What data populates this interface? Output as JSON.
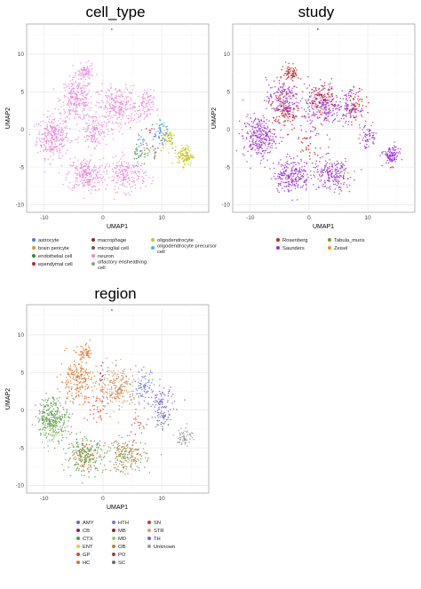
{
  "chart_data": [
    {
      "type": "scatter",
      "title": "cell_type",
      "xlabel": "UMAP1",
      "ylabel": "UMAP2",
      "xticks": [
        -10,
        0,
        10
      ],
      "yticks": [
        10,
        5,
        0,
        -5,
        -10
      ],
      "xlim": [
        -13,
        18
      ],
      "ylim": [
        -11,
        14
      ],
      "grid": true,
      "legend_position": "bottom",
      "legend_columns": 3,
      "series": [
        {
          "name": "astrocyte",
          "color": "#4a7fd0"
        },
        {
          "name": "brain pericyte",
          "color": "#e8922e"
        },
        {
          "name": "endothelial cell",
          "color": "#2e8b3a"
        },
        {
          "name": "ependymal cell",
          "color": "#c8202f"
        },
        {
          "name": "macrophage",
          "color": "#8a2a2a"
        },
        {
          "name": "microglial cell",
          "color": "#7a5a4a"
        },
        {
          "name": "neuron",
          "color": "#e88ad8"
        },
        {
          "name": "olfactory ensheathing cell",
          "color": "#999999"
        },
        {
          "name": "oligodendrocyte",
          "color": "#c8c81e"
        },
        {
          "name": "oligodendrocyte precursor cell",
          "color": "#4ab6d8"
        }
      ],
      "clusters": [
        {
          "series": 6,
          "x": -8.5,
          "y": -1,
          "sx": 2.5,
          "sy": 2.5,
          "n": 300
        },
        {
          "series": 6,
          "x": -4.5,
          "y": 4,
          "sx": 2.5,
          "sy": 2.5,
          "n": 260
        },
        {
          "series": 6,
          "x": -3,
          "y": -6,
          "sx": 2.8,
          "sy": 2,
          "n": 240
        },
        {
          "series": 6,
          "x": 2.5,
          "y": 3,
          "sx": 3,
          "sy": 2.5,
          "n": 260
        },
        {
          "series": 6,
          "x": 4,
          "y": -6,
          "sx": 3,
          "sy": 2,
          "n": 200
        },
        {
          "series": 6,
          "x": -3,
          "y": 7.5,
          "sx": 1.2,
          "sy": 1,
          "n": 80
        },
        {
          "series": 6,
          "x": -1.5,
          "y": 0,
          "sx": 2,
          "sy": 2,
          "n": 140
        },
        {
          "series": 6,
          "x": 7,
          "y": 3,
          "sx": 1.5,
          "sy": 2,
          "n": 100
        },
        {
          "series": 8,
          "x": 14,
          "y": -3.5,
          "sx": 1.2,
          "sy": 1.2,
          "n": 120
        },
        {
          "series": 8,
          "x": 11,
          "y": -1,
          "sx": 1.2,
          "sy": 1.5,
          "n": 60
        },
        {
          "series": 0,
          "x": 10,
          "y": -1,
          "sx": 1.5,
          "sy": 1.5,
          "n": 40
        },
        {
          "series": 0,
          "x": 6.5,
          "y": -1.5,
          "sx": 1,
          "sy": 1.5,
          "n": 20
        },
        {
          "series": 9,
          "x": 10,
          "y": 0.5,
          "sx": 1,
          "sy": 1,
          "n": 20
        },
        {
          "series": 2,
          "x": 6.5,
          "y": -3,
          "sx": 1.5,
          "sy": 1.5,
          "n": 30
        },
        {
          "series": 1,
          "x": 7.5,
          "y": -2.5,
          "sx": 0.5,
          "sy": 0.5,
          "n": 6
        },
        {
          "series": 3,
          "x": 8,
          "y": 0,
          "sx": 0.5,
          "sy": 0.5,
          "n": 6
        },
        {
          "series": 5,
          "x": 9,
          "y": -3,
          "sx": 0.6,
          "sy": 0.6,
          "n": 8
        }
      ]
    },
    {
      "type": "scatter",
      "title": "study",
      "xlabel": "UMAP1",
      "ylabel": "UMAP2",
      "xticks": [
        -10,
        0,
        10
      ],
      "yticks": [
        10,
        5,
        0,
        -5,
        -10
      ],
      "xlim": [
        -13,
        18
      ],
      "ylim": [
        -11,
        14
      ],
      "grid": true,
      "legend_position": "bottom",
      "legend_columns": 2,
      "series": [
        {
          "name": "Rosenberg",
          "color": "#cc1f1f"
        },
        {
          "name": "Saunders",
          "color": "#9a2fcf"
        },
        {
          "name": "Tabula_muris",
          "color": "#6aa02e"
        },
        {
          "name": "Zeisel",
          "color": "#e69a1a"
        }
      ],
      "clusters": [
        {
          "series": 1,
          "x": -8.5,
          "y": -1,
          "sx": 2.5,
          "sy": 2.5,
          "n": 280
        },
        {
          "series": 1,
          "x": -4.5,
          "y": 4,
          "sx": 2.5,
          "sy": 2.5,
          "n": 200
        },
        {
          "series": 1,
          "x": -3,
          "y": -6,
          "sx": 2.8,
          "sy": 2,
          "n": 240
        },
        {
          "series": 1,
          "x": 2.5,
          "y": 3,
          "sx": 3,
          "sy": 2.5,
          "n": 220
        },
        {
          "series": 1,
          "x": 4,
          "y": -6,
          "sx": 3,
          "sy": 2,
          "n": 200
        },
        {
          "series": 1,
          "x": 7,
          "y": 3,
          "sx": 1.5,
          "sy": 2,
          "n": 90
        },
        {
          "series": 1,
          "x": 14,
          "y": -3.5,
          "sx": 1.2,
          "sy": 1.2,
          "n": 110
        },
        {
          "series": 1,
          "x": 10,
          "y": -1,
          "sx": 1.5,
          "sy": 1.5,
          "n": 60
        },
        {
          "series": 0,
          "x": -3,
          "y": 7.5,
          "sx": 1.2,
          "sy": 1,
          "n": 70
        },
        {
          "series": 0,
          "x": -4,
          "y": 2,
          "sx": 2,
          "sy": 2,
          "n": 90
        },
        {
          "series": 0,
          "x": 2,
          "y": 4,
          "sx": 2,
          "sy": 2,
          "n": 90
        },
        {
          "series": 0,
          "x": 8,
          "y": 3,
          "sx": 1.5,
          "sy": 2,
          "n": 60
        },
        {
          "series": 0,
          "x": 0,
          "y": -2,
          "sx": 2,
          "sy": 2,
          "n": 40
        },
        {
          "series": 3,
          "x": -5,
          "y": 4.5,
          "sx": 0.8,
          "sy": 0.8,
          "n": 10
        },
        {
          "series": 2,
          "x": 6,
          "y": -5,
          "sx": 1,
          "sy": 1,
          "n": 6
        }
      ]
    },
    {
      "type": "scatter",
      "title": "region",
      "xlabel": "UMAP1",
      "ylabel": "UMAP2",
      "xticks": [
        -10,
        0,
        10
      ],
      "yticks": [
        10,
        5,
        0,
        -5,
        -10
      ],
      "xlim": [
        -13,
        18
      ],
      "ylim": [
        -11,
        14
      ],
      "grid": true,
      "legend_position": "bottom",
      "legend_columns": 3,
      "series": [
        {
          "name": "AMY",
          "color": "#6a6aa8"
        },
        {
          "name": "CB",
          "color": "#8b2252"
        },
        {
          "name": "CTX",
          "color": "#5a9a4a"
        },
        {
          "name": "ENT",
          "color": "#e8c83a"
        },
        {
          "name": "GP",
          "color": "#d84a2a"
        },
        {
          "name": "HC",
          "color": "#e0762a"
        },
        {
          "name": "HTH",
          "color": "#6a7ad8"
        },
        {
          "name": "MB",
          "color": "#8a2a2a"
        },
        {
          "name": "MD",
          "color": "#9acd6a"
        },
        {
          "name": "OB",
          "color": "#c87a3a"
        },
        {
          "name": "PO",
          "color": "#a83a3a"
        },
        {
          "name": "SC",
          "color": "#6a6a6a"
        },
        {
          "name": "SN",
          "color": "#c83a2a"
        },
        {
          "name": "STR",
          "color": "#d8a070"
        },
        {
          "name": "TH",
          "color": "#7a5ad8"
        },
        {
          "name": "Unknown",
          "color": "#9a9a9a"
        }
      ],
      "clusters": [
        {
          "series": 2,
          "x": -8.5,
          "y": -1,
          "sx": 2.5,
          "sy": 2.5,
          "n": 280
        },
        {
          "series": 5,
          "x": -4.5,
          "y": 4,
          "sx": 2.5,
          "sy": 2.5,
          "n": 200
        },
        {
          "series": 2,
          "x": -3,
          "y": -6,
          "sx": 2.8,
          "sy": 2,
          "n": 200
        },
        {
          "series": 5,
          "x": -3,
          "y": -6,
          "sx": 2.8,
          "sy": 2,
          "n": 60
        },
        {
          "series": 13,
          "x": 2.5,
          "y": 3,
          "sx": 3,
          "sy": 2.5,
          "n": 140
        },
        {
          "series": 9,
          "x": 2.5,
          "y": 3,
          "sx": 3,
          "sy": 2.5,
          "n": 100
        },
        {
          "series": 6,
          "x": 7,
          "y": 3,
          "sx": 1.5,
          "sy": 2,
          "n": 80
        },
        {
          "series": 14,
          "x": 10,
          "y": 1,
          "sx": 2,
          "sy": 2,
          "n": 80
        },
        {
          "series": 5,
          "x": -3,
          "y": 7.5,
          "sx": 1.2,
          "sy": 1,
          "n": 60
        },
        {
          "series": 9,
          "x": 4,
          "y": -6,
          "sx": 3,
          "sy": 2,
          "n": 120
        },
        {
          "series": 2,
          "x": 4,
          "y": -6,
          "sx": 3,
          "sy": 2,
          "n": 80
        },
        {
          "series": 15,
          "x": 14,
          "y": -3.5,
          "sx": 1.2,
          "sy": 1.2,
          "n": 60
        },
        {
          "series": 0,
          "x": 10,
          "y": -1,
          "sx": 1.5,
          "sy": 1.5,
          "n": 40
        },
        {
          "series": 8,
          "x": -9,
          "y": -3,
          "sx": 1.5,
          "sy": 1.5,
          "n": 40
        },
        {
          "series": 4,
          "x": -1,
          "y": 0,
          "sx": 2,
          "sy": 2,
          "n": 40
        },
        {
          "series": 12,
          "x": 6,
          "y": -2,
          "sx": 1.5,
          "sy": 1.5,
          "n": 20
        },
        {
          "series": 1,
          "x": 0,
          "y": 5,
          "sx": 1,
          "sy": 1,
          "n": 10
        }
      ]
    }
  ]
}
